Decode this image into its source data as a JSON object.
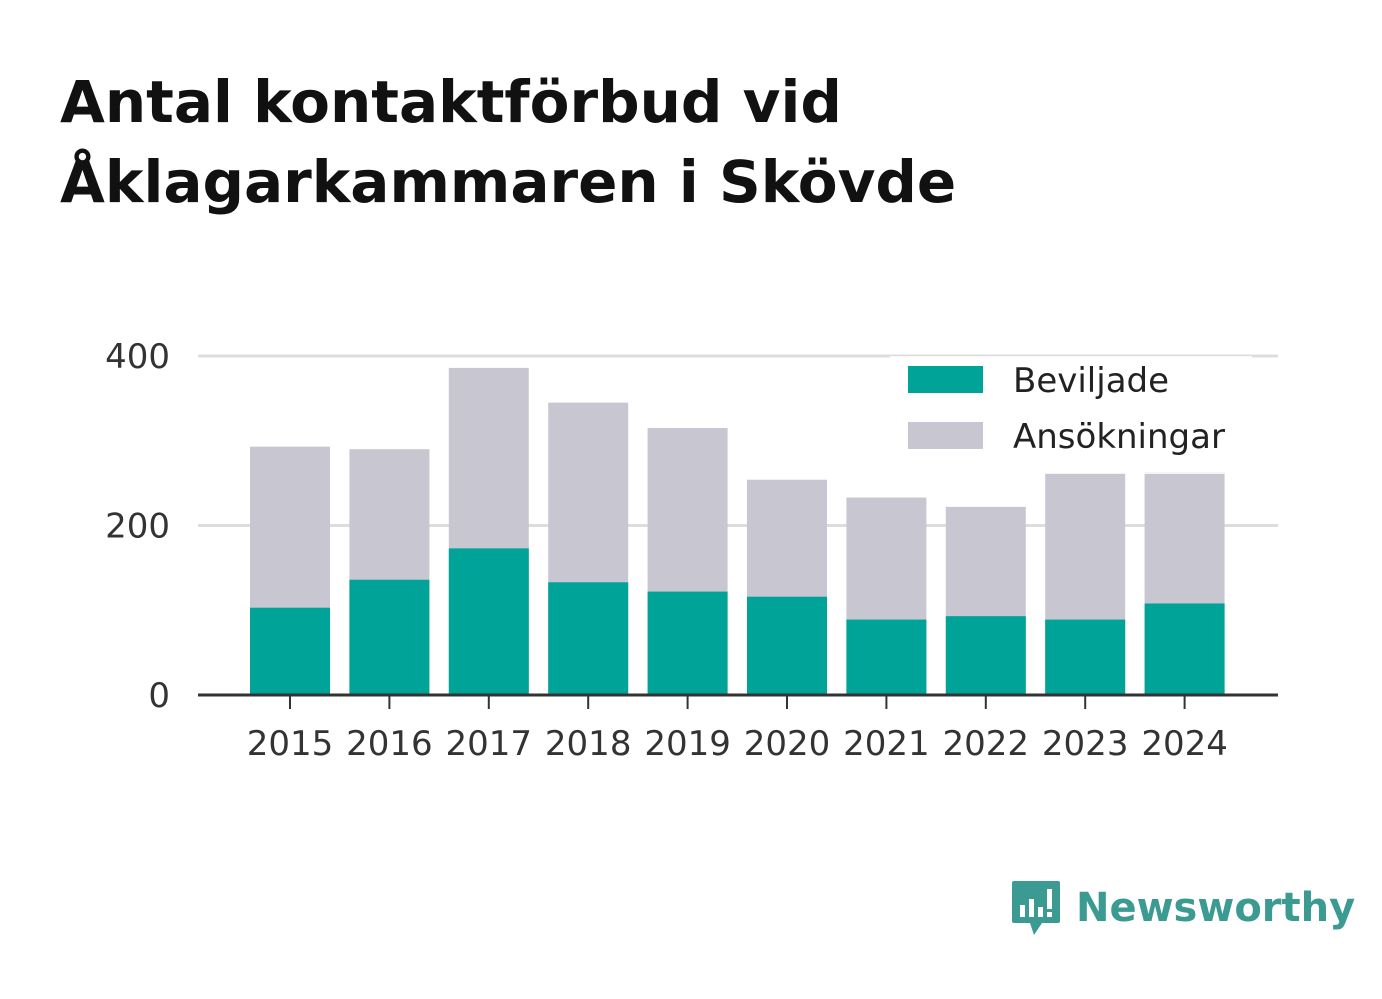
{
  "title_lines": [
    "Antal kontaktförbud vid",
    "Åklagarkammaren i Skövde"
  ],
  "brand": {
    "name": "Newsworthy",
    "icon": "newsworthy-logo-icon",
    "color": "#3b9a92"
  },
  "colors": {
    "granted": "#00a398",
    "applications": "#c8c6d1",
    "grid": "#dddddd",
    "axis": "#333333"
  },
  "chart_data": {
    "type": "bar",
    "stacked": "overlay",
    "categories": [
      "2015",
      "2016",
      "2017",
      "2018",
      "2019",
      "2020",
      "2021",
      "2022",
      "2023",
      "2024"
    ],
    "series": [
      {
        "name": "Beviljade",
        "values": [
          103,
          136,
          173,
          133,
          122,
          116,
          89,
          93,
          89,
          108
        ]
      },
      {
        "name": "Ansökningar",
        "values": [
          293,
          290,
          386,
          345,
          315,
          254,
          233,
          222,
          262,
          263
        ]
      }
    ],
    "ylim": [
      0,
      400
    ],
    "yticks": [
      "0",
      "200",
      "400"
    ],
    "grid": true,
    "legend": "top-right"
  }
}
